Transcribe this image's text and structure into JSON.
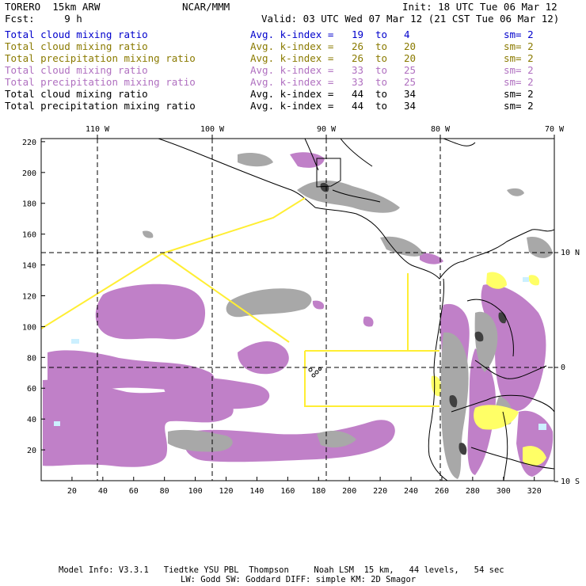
{
  "header": {
    "model": "TORERO  15km ARW",
    "center": "NCAR/MMM",
    "init": "Init: 18 UTC Tue 06 Mar 12",
    "fcst": "Fcst:     9 h",
    "valid": "Valid: 03 UTC Wed 07 Mar 12 (21 CST Tue 06 Mar 12)"
  },
  "legend": [
    {
      "field": "Total cloud mixing ratio",
      "kindex": "Avg. k-index =",
      "v1": "19",
      "to": "to",
      "v2": "4",
      "sm": "sm= 2",
      "color": "#0000cc"
    },
    {
      "field": "Total cloud mixing ratio",
      "kindex": "Avg. k-index =",
      "v1": "26",
      "to": "to",
      "v2": "20",
      "sm": "sm= 2",
      "color": "#8a7a00"
    },
    {
      "field": "Total precipitation mixing ratio",
      "kindex": "Avg. k-index =",
      "v1": "26",
      "to": "to",
      "v2": "20",
      "sm": "sm= 2",
      "color": "#8a7a00"
    },
    {
      "field": "Total cloud mixing ratio",
      "kindex": "Avg. k-index =",
      "v1": "33",
      "to": "to",
      "v2": "25",
      "sm": "sm= 2",
      "color": "#b070c0"
    },
    {
      "field": "Total precipitation mixing ratio",
      "kindex": "Avg. k-index =",
      "v1": "33",
      "to": "to",
      "v2": "25",
      "sm": "sm= 2",
      "color": "#b070c0"
    },
    {
      "field": "Total cloud mixing ratio",
      "kindex": "Avg. k-index =",
      "v1": "44",
      "to": "to",
      "v2": "34",
      "sm": "sm= 2",
      "color": "#000000"
    },
    {
      "field": "Total precipitation mixing ratio",
      "kindex": "Avg. k-index =",
      "v1": "44",
      "to": "to",
      "v2": "34",
      "sm": "sm= 2",
      "color": "#000000"
    }
  ],
  "map": {
    "lon_labels": [
      "110 W",
      "100 W",
      "90 W",
      "80 W",
      "70 W"
    ],
    "lat_labels": [
      "10 N",
      "0",
      "10 S"
    ],
    "y_ticks": [
      "220",
      "200",
      "180",
      "160",
      "140",
      "120",
      "100",
      "80",
      "60",
      "40",
      "20"
    ],
    "x_ticks": [
      "20",
      "40",
      "60",
      "80",
      "100",
      "120",
      "140",
      "160",
      "180",
      "200",
      "220",
      "240",
      "260",
      "280",
      "300",
      "320"
    ],
    "colors": {
      "cloud_light": "#c080c8",
      "cloud_dark": "#a0a0a0",
      "precip": "#ffff66",
      "boundary": "#000000",
      "region": "#ffee33",
      "grid": "#000000",
      "water_hint": "#ccf0ff"
    }
  },
  "footer": {
    "line1": "Model Info: V3.3.1   Tiedtke YSU PBL  Thompson     Noah LSM  15 km,   44 levels,   54 sec",
    "line2": "LW: Godd SW: Goddard DIFF: simple KM: 2D Smagor"
  }
}
